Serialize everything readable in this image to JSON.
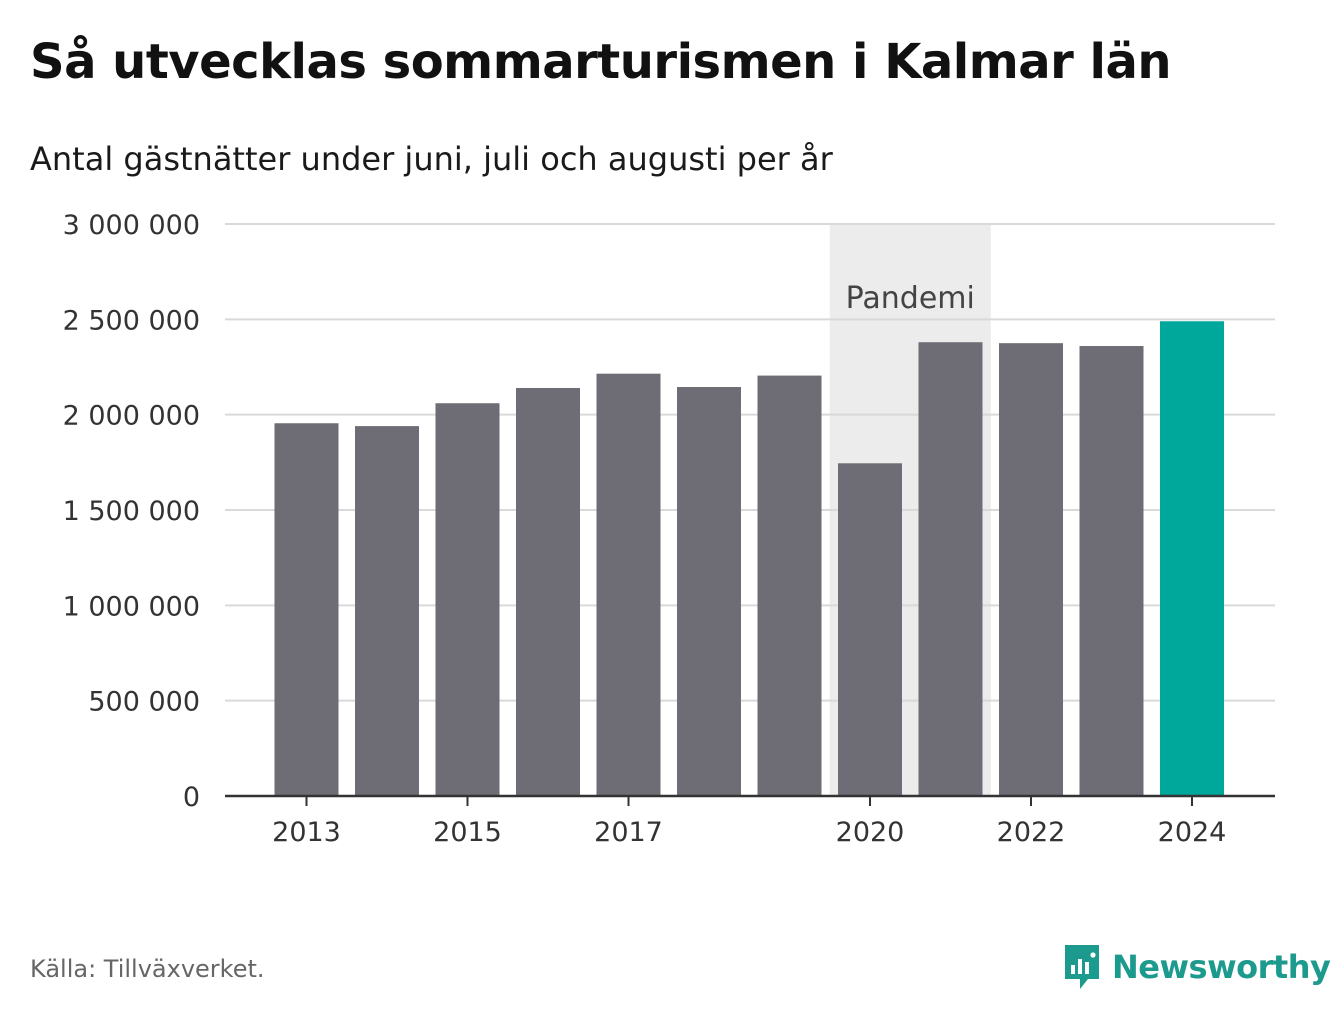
{
  "title": "Så utvecklas sommarturismen i Kalmar län",
  "subtitle": "Antal gästnätter under juni, juli och augusti per år",
  "source": "Källa: Tillväxverket.",
  "brand": "Newsworthy",
  "colors": {
    "bar": "#6e6d75",
    "highlight": "#00a79b",
    "shade": "#ececec",
    "grid": "#d9d9d9",
    "brand": "#1c9a8e"
  },
  "chart_data": {
    "type": "bar",
    "categories": [
      "2013",
      "2014",
      "2015",
      "2016",
      "2017",
      "2018",
      "2019",
      "2020",
      "2021",
      "2022",
      "2023",
      "2024"
    ],
    "values": [
      1955000,
      1940000,
      2060000,
      2140000,
      2215000,
      2145000,
      2205000,
      1745000,
      2380000,
      2375000,
      2360000,
      2490000
    ],
    "highlight_category": "2024",
    "x_tick_labels": [
      "2013",
      "2015",
      "2017",
      "2020",
      "2022",
      "2024"
    ],
    "y_ticks": [
      0,
      500000,
      1000000,
      1500000,
      2000000,
      2500000,
      3000000
    ],
    "y_tick_labels": [
      "0",
      "500 000",
      "1 000 000",
      "1 500 000",
      "2 000 000",
      "2 500 000",
      "3 000 000"
    ],
    "ylim": [
      0,
      3000000
    ],
    "grid": true,
    "annotation": {
      "label": "Pandemi",
      "from_category": "2020",
      "to_category": "2021"
    }
  }
}
